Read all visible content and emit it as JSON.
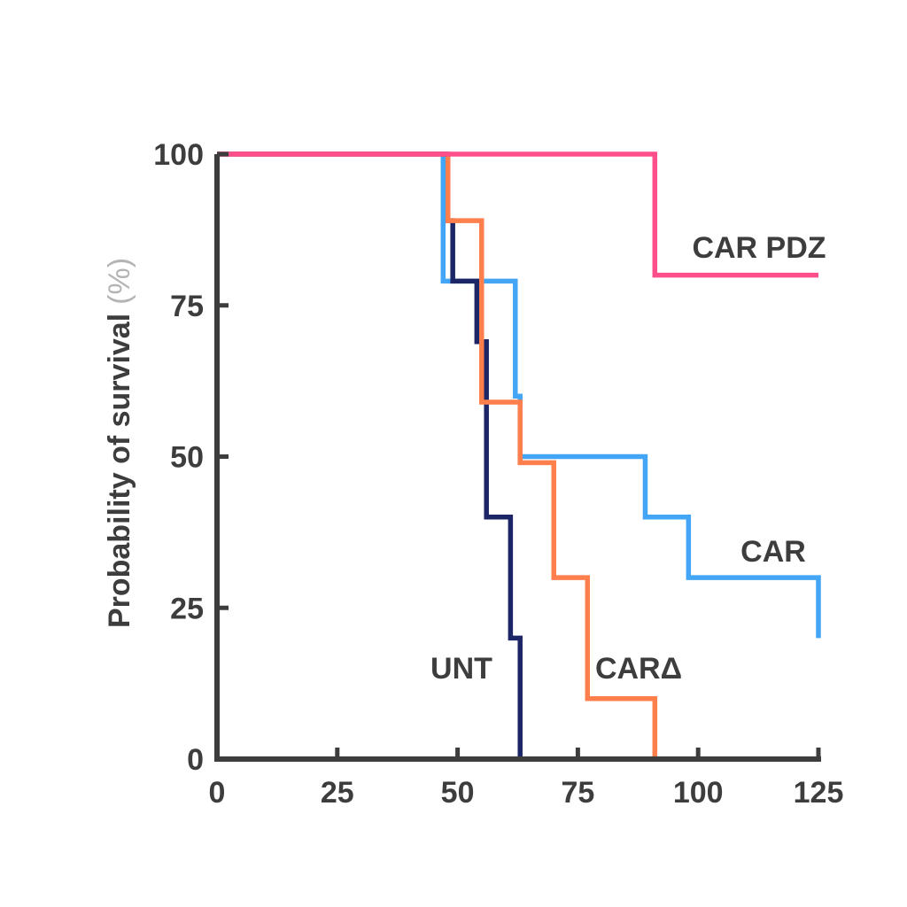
{
  "chart_data": {
    "type": "line",
    "step": "post",
    "title": "",
    "xlabel": "",
    "ylabel": "Probability of survival",
    "ylabel_unit": "(%)",
    "xlim": [
      0,
      125
    ],
    "ylim": [
      0,
      100
    ],
    "xticks": [
      0,
      25,
      50,
      75,
      100,
      125
    ],
    "yticks": [
      0,
      25,
      50,
      75,
      100
    ],
    "grid": false,
    "legend": "inline labels at line ends",
    "series": [
      {
        "name": "CAR",
        "color": "#42a5f5",
        "x": [
          0,
          47,
          62,
          63,
          89,
          98,
          125
        ],
        "y": [
          100,
          79,
          60,
          50,
          40,
          30,
          20
        ]
      },
      {
        "name": "UNT",
        "color": "#1c2566",
        "x": [
          0,
          48,
          49,
          54,
          56,
          61,
          62,
          63
        ],
        "y": [
          100,
          89,
          79,
          69,
          40,
          20,
          20,
          0
        ]
      },
      {
        "name": "CARΔ",
        "color": "#ff7f4c",
        "x": [
          0,
          48,
          55,
          63,
          70,
          77,
          91
        ],
        "y": [
          100,
          89,
          59,
          49,
          30,
          10,
          0
        ]
      },
      {
        "name": "CAR PDZ",
        "color": "#ff4f8b",
        "x": [
          0,
          91,
          125
        ],
        "y": [
          100,
          80,
          80
        ]
      }
    ]
  }
}
